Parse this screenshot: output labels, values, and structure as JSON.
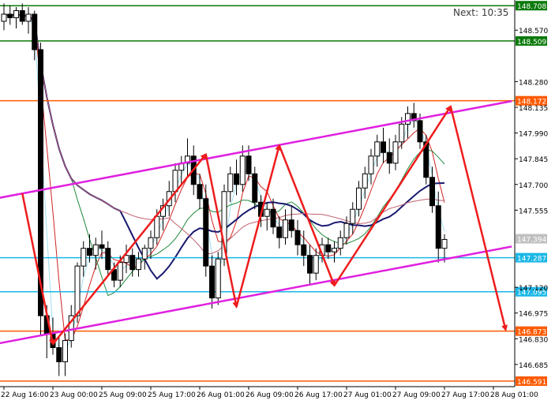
{
  "chart_data": {
    "type": "candlestick",
    "symbol_timeframe": "",
    "timer": {
      "label": "Next:",
      "value": "10:35"
    },
    "y_range": [
      146.56,
      148.74
    ],
    "price_ticks": [
      "148.570",
      "148.280",
      "148.135",
      "147.990",
      "147.845",
      "147.700",
      "147.555",
      "147.120",
      "146.975",
      "146.830",
      "146.685"
    ],
    "time_ticks": [
      {
        "label": "22 Aug 16:00",
        "bar": 0
      },
      {
        "label": "23 Aug 00:00",
        "bar": 8
      },
      {
        "label": "25 Aug 09:00",
        "bar": 16
      },
      {
        "label": "25 Aug 17:00",
        "bar": 24
      },
      {
        "label": "26 Aug 01:00",
        "bar": 32
      },
      {
        "label": "26 Aug 09:00",
        "bar": 40
      },
      {
        "label": "26 Aug 17:00",
        "bar": 48
      },
      {
        "label": "27 Aug 01:00",
        "bar": 56
      },
      {
        "label": "27 Aug 09:00",
        "bar": 64
      },
      {
        "label": "27 Aug 17:00",
        "bar": 72
      },
      {
        "label": "28 Aug 01:00",
        "bar": 80
      }
    ],
    "levels": [
      {
        "value": "148.708",
        "price": 148.708,
        "color": "#0a7a0a"
      },
      {
        "value": "148.509",
        "price": 148.509,
        "color": "#0a7a0a"
      },
      {
        "value": "148.172",
        "price": 148.172,
        "color": "#ff5a00"
      },
      {
        "value": "147.287",
        "price": 147.287,
        "color": "#19b7e6"
      },
      {
        "value": "147.095",
        "price": 147.095,
        "color": "#19b7e6"
      },
      {
        "value": "146.873",
        "price": 146.873,
        "color": "#ff5a00"
      },
      {
        "value": "146.591",
        "price": 146.591,
        "color": "#ff5a00"
      }
    ],
    "current_price": {
      "value": "147.394",
      "price": 147.394
    },
    "channel": {
      "color": "#e020e0",
      "upper": [
        [
          -3,
          147.61
        ],
        [
          83,
          148.17
        ]
      ],
      "lower": [
        [
          -3,
          146.79
        ],
        [
          83,
          147.35
        ]
      ]
    },
    "zigzag": {
      "color": "#ee1c1c",
      "points": [
        [
          3,
          147.65
        ],
        [
          8,
          146.8
        ],
        [
          33,
          147.87
        ],
        [
          38,
          147.01
        ],
        [
          45,
          147.92
        ],
        [
          54,
          147.13
        ],
        [
          73,
          148.14
        ],
        [
          82,
          146.88
        ]
      ]
    },
    "ohlc": [
      [
        148.62,
        148.72,
        148.57,
        148.66
      ],
      [
        148.66,
        148.71,
        148.6,
        148.64
      ],
      [
        148.64,
        148.7,
        148.58,
        148.68
      ],
      [
        148.68,
        148.72,
        148.6,
        148.62
      ],
      [
        148.62,
        148.7,
        148.55,
        148.66
      ],
      [
        148.66,
        148.68,
        148.4,
        148.46
      ],
      [
        148.46,
        148.5,
        146.85,
        146.96
      ],
      [
        146.96,
        147.02,
        146.72,
        146.86
      ],
      [
        146.86,
        146.95,
        146.74,
        146.78
      ],
      [
        146.78,
        146.84,
        146.62,
        146.7
      ],
      [
        146.7,
        146.86,
        146.62,
        146.82
      ],
      [
        146.82,
        147.02,
        146.78,
        146.96
      ],
      [
        146.96,
        147.26,
        146.92,
        147.24
      ],
      [
        147.24,
        147.38,
        147.18,
        147.34
      ],
      [
        147.34,
        147.42,
        147.26,
        147.3
      ],
      [
        147.3,
        147.4,
        147.22,
        147.36
      ],
      [
        147.36,
        147.44,
        147.28,
        147.34
      ],
      [
        147.34,
        147.38,
        147.18,
        147.22
      ],
      [
        147.22,
        147.26,
        147.12,
        147.16
      ],
      [
        147.16,
        147.3,
        147.12,
        147.26
      ],
      [
        147.26,
        147.36,
        147.2,
        147.3
      ],
      [
        147.3,
        147.34,
        147.18,
        147.22
      ],
      [
        147.22,
        147.32,
        147.18,
        147.28
      ],
      [
        147.28,
        147.36,
        147.22,
        147.34
      ],
      [
        147.34,
        147.44,
        147.28,
        147.4
      ],
      [
        147.4,
        147.56,
        147.36,
        147.52
      ],
      [
        147.52,
        147.62,
        147.44,
        147.58
      ],
      [
        147.58,
        147.72,
        147.52,
        147.66
      ],
      [
        147.66,
        147.82,
        147.6,
        147.78
      ],
      [
        147.78,
        147.86,
        147.7,
        147.82
      ],
      [
        147.82,
        147.96,
        147.74,
        147.86
      ],
      [
        147.86,
        147.92,
        147.64,
        147.7
      ],
      [
        147.7,
        147.76,
        147.56,
        147.62
      ],
      [
        147.62,
        147.7,
        147.18,
        147.24
      ],
      [
        147.24,
        147.3,
        147.0,
        147.06
      ],
      [
        147.06,
        147.32,
        147.02,
        147.28
      ],
      [
        147.28,
        147.7,
        147.24,
        147.66
      ],
      [
        147.66,
        147.8,
        147.6,
        147.76
      ],
      [
        147.76,
        147.84,
        147.64,
        147.7
      ],
      [
        147.7,
        147.92,
        147.66,
        147.86
      ],
      [
        147.86,
        147.92,
        147.72,
        147.76
      ],
      [
        147.76,
        147.8,
        147.56,
        147.6
      ],
      [
        147.6,
        147.64,
        147.46,
        147.52
      ],
      [
        147.52,
        147.6,
        147.44,
        147.56
      ],
      [
        147.56,
        147.62,
        147.42,
        147.46
      ],
      [
        147.46,
        147.52,
        147.34,
        147.4
      ],
      [
        147.4,
        147.56,
        147.36,
        147.5
      ],
      [
        147.5,
        147.58,
        147.4,
        147.44
      ],
      [
        147.44,
        147.5,
        147.3,
        147.36
      ],
      [
        147.36,
        147.44,
        147.24,
        147.3
      ],
      [
        147.3,
        147.36,
        147.14,
        147.2
      ],
      [
        147.2,
        147.34,
        147.16,
        147.3
      ],
      [
        147.3,
        147.4,
        147.26,
        147.36
      ],
      [
        147.36,
        147.4,
        147.28,
        147.32
      ],
      [
        147.32,
        147.38,
        147.26,
        147.34
      ],
      [
        147.34,
        147.44,
        147.3,
        147.4
      ],
      [
        147.4,
        147.52,
        147.36,
        147.48
      ],
      [
        147.48,
        147.6,
        147.42,
        147.56
      ],
      [
        147.56,
        147.72,
        147.52,
        147.68
      ],
      [
        147.68,
        147.8,
        147.62,
        147.76
      ],
      [
        147.76,
        147.9,
        147.7,
        147.86
      ],
      [
        147.86,
        147.98,
        147.8,
        147.94
      ],
      [
        147.94,
        148.02,
        147.82,
        147.88
      ],
      [
        147.88,
        147.96,
        147.76,
        147.82
      ],
      [
        147.82,
        147.98,
        147.78,
        147.94
      ],
      [
        147.94,
        148.08,
        147.9,
        148.04
      ],
      [
        148.04,
        148.14,
        147.96,
        148.1
      ],
      [
        148.1,
        148.16,
        148.02,
        148.06
      ],
      [
        148.06,
        148.1,
        147.9,
        147.94
      ],
      [
        147.94,
        147.98,
        147.7,
        147.74
      ],
      [
        147.74,
        147.8,
        147.54,
        147.58
      ],
      [
        147.58,
        147.66,
        147.26,
        147.34
      ],
      [
        147.34,
        147.42,
        147.26,
        147.39
      ]
    ]
  }
}
